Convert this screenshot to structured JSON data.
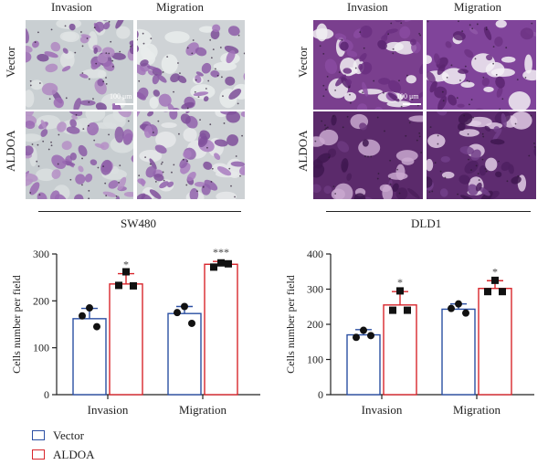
{
  "panels": [
    {
      "cell_line": "SW480",
      "column_labels": [
        "Invasion",
        "Migration"
      ],
      "row_labels": [
        "Vector",
        "ALDOA"
      ],
      "scale_bar": "100 μm"
    },
    {
      "cell_line": "DLD1",
      "column_labels": [
        "Invasion",
        "Migration"
      ],
      "row_labels": [
        "Vector",
        "ALDOA"
      ],
      "scale_bar": "100 μm"
    }
  ],
  "legend": [
    {
      "label": "Vector",
      "color": "#2b4fa3"
    },
    {
      "label": "ALDOA",
      "color": "#d8262c"
    }
  ],
  "chart_data": [
    {
      "type": "bar",
      "categories": [
        "Invasion",
        "Migration"
      ],
      "ylabel": "Cells number per field",
      "ylim": [
        0,
        300
      ],
      "yticks": [
        0,
        100,
        200,
        300
      ],
      "series": [
        {
          "name": "Vector",
          "color": "#2b4fa3",
          "values": [
            162,
            173
          ],
          "errors": [
            22,
            15
          ],
          "points": [
            [
              185,
              168,
              145
            ],
            [
              188,
              175,
              152
            ]
          ]
        },
        {
          "name": "ALDOA",
          "color": "#d8262c",
          "values": [
            236,
            278
          ],
          "errors": [
            22,
            6
          ],
          "points": [
            [
              262,
              233,
              232
            ],
            [
              281,
              272,
              279
            ]
          ]
        }
      ],
      "significance": [
        "*",
        "***"
      ]
    },
    {
      "type": "bar",
      "categories": [
        "Invasion",
        "Migration"
      ],
      "ylabel": "Cells number per field",
      "ylim": [
        0,
        400
      ],
      "yticks": [
        0,
        100,
        200,
        300,
        400
      ],
      "series": [
        {
          "name": "Vector",
          "color": "#2b4fa3",
          "values": [
            170,
            243
          ],
          "errors": [
            15,
            15
          ],
          "points": [
            [
              183,
              163,
              168
            ],
            [
              258,
              245,
              232
            ]
          ]
        },
        {
          "name": "ALDOA",
          "color": "#d8262c",
          "values": [
            255,
            302
          ],
          "errors": [
            38,
            22
          ],
          "points": [
            [
              295,
              240,
              240
            ],
            [
              325,
              293,
              293
            ]
          ]
        }
      ],
      "significance": [
        "*",
        "*"
      ]
    }
  ]
}
